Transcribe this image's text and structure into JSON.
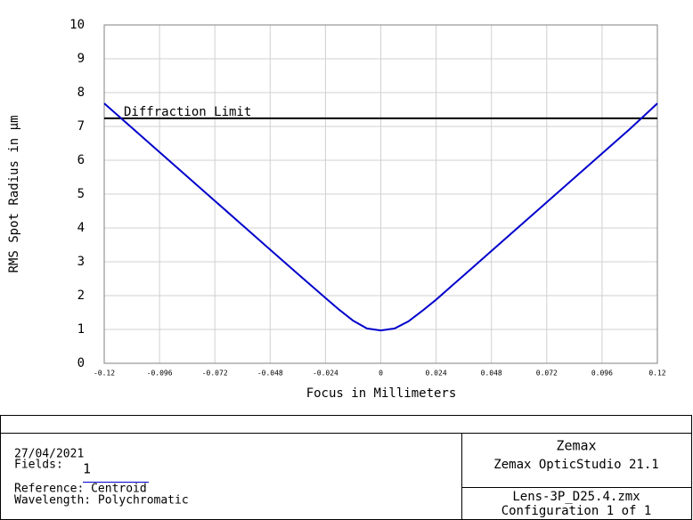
{
  "chart_data": {
    "type": "line",
    "x_label": "Focus in Millimeters",
    "y_label": "RMS Spot Radius in µm",
    "x": [
      -0.12,
      -0.108,
      -0.096,
      -0.084,
      -0.072,
      -0.06,
      -0.048,
      -0.036,
      -0.024,
      -0.018,
      -0.012,
      -0.006,
      0,
      0.006,
      0.012,
      0.018,
      0.024,
      0.036,
      0.048,
      0.06,
      0.072,
      0.084,
      0.096,
      0.108,
      0.12
    ],
    "values": [
      7.68,
      6.96,
      6.24,
      5.52,
      4.8,
      4.08,
      3.36,
      2.64,
      1.93,
      1.58,
      1.26,
      1.03,
      0.97,
      1.03,
      1.24,
      1.55,
      1.88,
      2.6,
      3.32,
      4.04,
      4.76,
      5.48,
      6.2,
      6.92,
      7.68
    ],
    "color": "#0000cc",
    "xlim": [
      -0.12,
      0.12
    ],
    "xticks": [
      -0.12,
      -0.096,
      -0.072,
      -0.048,
      -0.024,
      0,
      0.024,
      0.048,
      0.072,
      0.096,
      0.12
    ],
    "ylim": [
      0,
      10
    ],
    "yticks": [
      0,
      1,
      2,
      3,
      4,
      5,
      6,
      7,
      8,
      9,
      10
    ],
    "grid": true,
    "diffraction_limit": {
      "label": "Diffraction Limit",
      "value": 7.24,
      "color": "#000000"
    }
  },
  "info": {
    "date": "27/04/2021",
    "fields_label": "Fields:",
    "fields_value": "1",
    "reference": "Reference: Centroid",
    "wavelength": "Wavelength: Polychromatic",
    "company": "Zemax",
    "product": "Zemax OpticStudio 21.1",
    "file": "Lens-3P_D25.4.zmx",
    "configuration": "Configuration 1 of 1"
  }
}
